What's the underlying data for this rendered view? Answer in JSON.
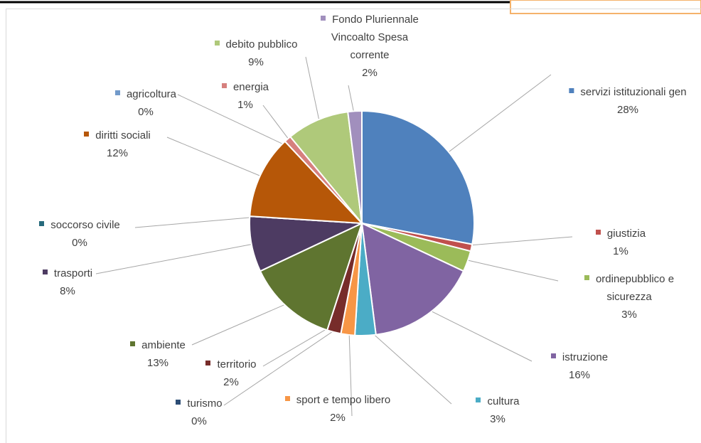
{
  "chart_data": {
    "type": "pie",
    "categories": [
      "servizi istituzionali gen",
      "giustizia",
      "ordinepubblico e sicurezza",
      "istruzione",
      "cultura",
      "sport e tempo libero",
      "turismo",
      "territorio",
      "ambiente",
      "trasporti",
      "soccorso civile",
      "diritti sociali",
      "agricoltura",
      "energia",
      "debito pubblico",
      "Fondo Pluriennale Vincoalto Spesa corrente"
    ],
    "values": [
      28,
      1,
      3,
      16,
      3,
      2,
      0,
      2,
      13,
      8,
      0,
      12,
      0,
      1,
      9,
      2
    ],
    "value_labels": [
      "28%",
      "1%",
      "3%",
      "16%",
      "3%",
      "2%",
      "0%",
      "2%",
      "13%",
      "8%",
      "0%",
      "12%",
      "0%",
      "1%",
      "9%",
      "2%"
    ],
    "colors": [
      "#4f81bd",
      "#c0504d",
      "#9bbb59",
      "#8064a2",
      "#4bacc6",
      "#f79646",
      "#2c4d75",
      "#772c2a",
      "#5f7530",
      "#4d3b62",
      "#276a7c",
      "#b65708",
      "#729aca",
      "#d6807e",
      "#afc97a",
      "#a18fbd"
    ]
  }
}
